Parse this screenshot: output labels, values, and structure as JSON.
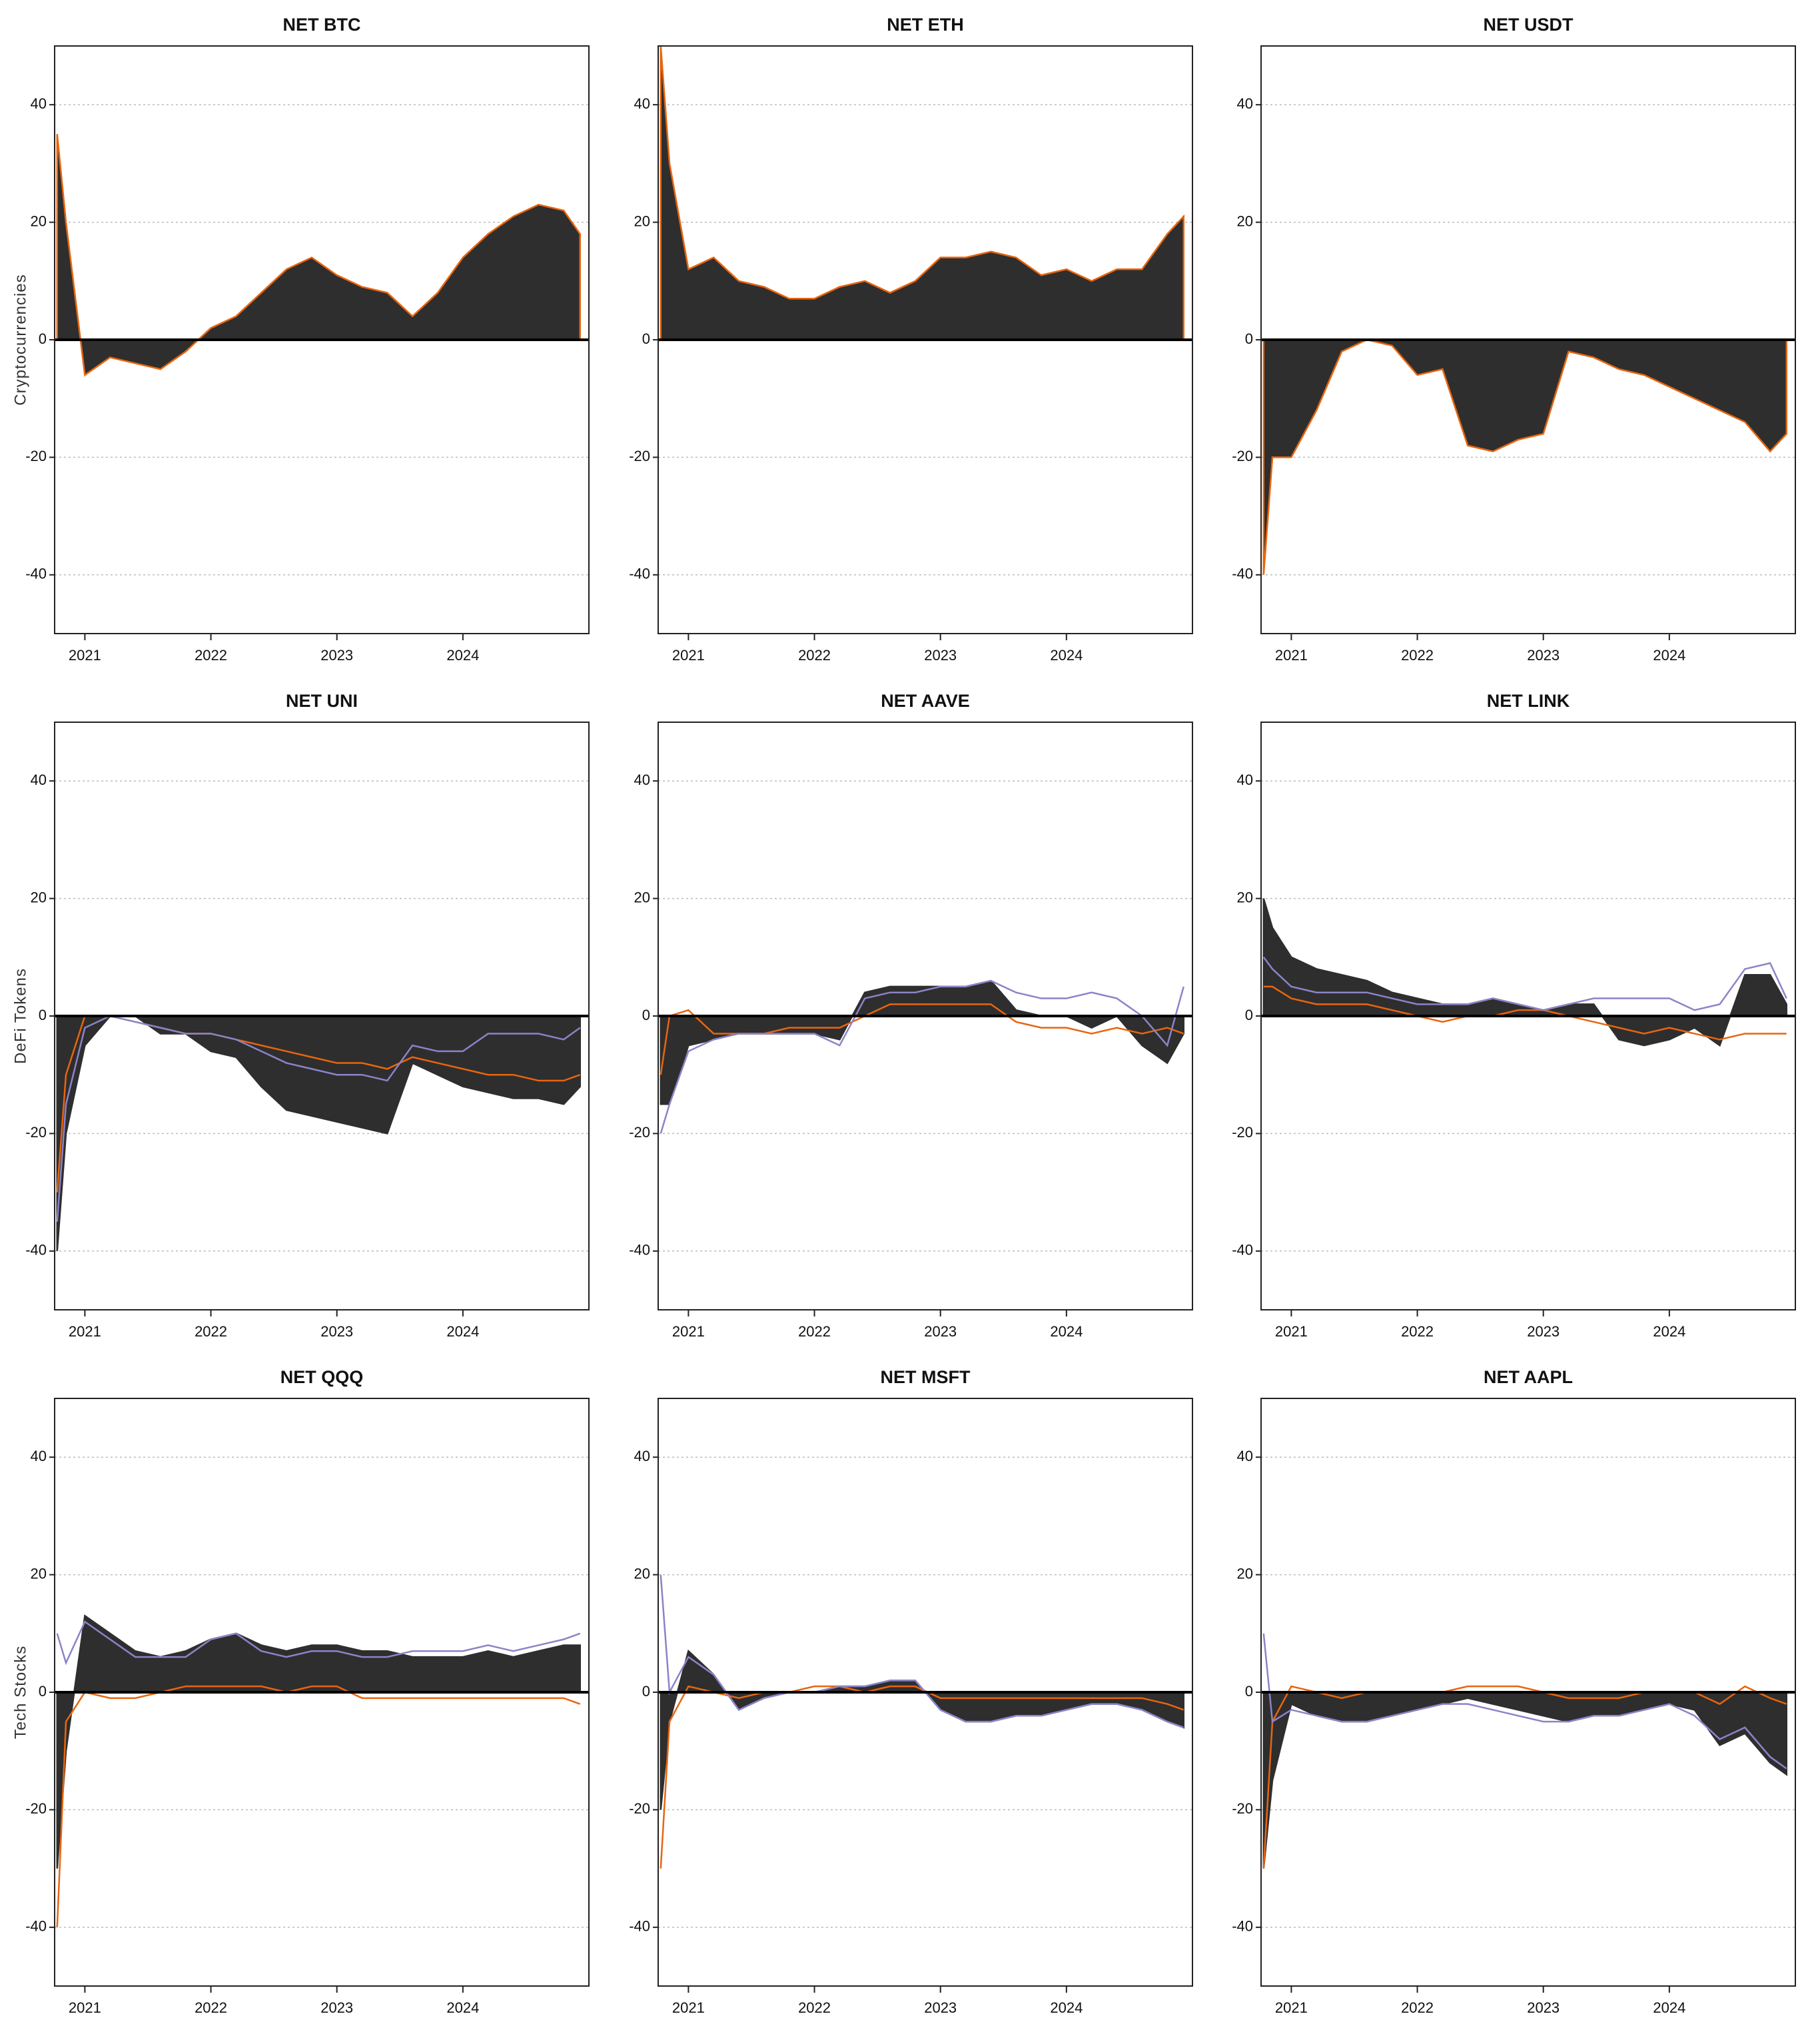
{
  "chart_data": [
    {
      "type": "area",
      "title": "NET BTC",
      "ylabel": "Cryptocurrencies",
      "x": [
        2020.78,
        2020.85,
        2021.0,
        2021.2,
        2021.4,
        2021.6,
        2021.8,
        2022.0,
        2022.2,
        2022.4,
        2022.6,
        2022.8,
        2023.0,
        2023.2,
        2023.4,
        2023.6,
        2023.8,
        2024.0,
        2024.2,
        2024.4,
        2024.6,
        2024.8,
        2024.93
      ],
      "series": [
        {
          "color": "#e8650e",
          "fill": "#2e2e2e",
          "values": [
            35,
            20,
            -6,
            -3,
            -4,
            -5,
            -2,
            2,
            4,
            8,
            12,
            14,
            11,
            9,
            8,
            4,
            8,
            14,
            18,
            21,
            23,
            22,
            18
          ]
        }
      ],
      "xlim": [
        2020.76,
        2025.0
      ],
      "xticks": [
        2021,
        2022,
        2023,
        2024
      ],
      "ylim": [
        -50,
        50
      ],
      "yticks": [
        -40,
        -20,
        0,
        20,
        40
      ],
      "grid": true
    },
    {
      "type": "area",
      "title": "NET ETH",
      "x": [
        2020.78,
        2020.85,
        2021.0,
        2021.2,
        2021.4,
        2021.6,
        2021.8,
        2022.0,
        2022.2,
        2022.4,
        2022.6,
        2022.8,
        2023.0,
        2023.2,
        2023.4,
        2023.6,
        2023.8,
        2024.0,
        2024.2,
        2024.4,
        2024.6,
        2024.8,
        2024.93
      ],
      "series": [
        {
          "color": "#e8650e",
          "fill": "#2e2e2e",
          "values": [
            50,
            30,
            12,
            14,
            10,
            9,
            7,
            7,
            9,
            10,
            8,
            10,
            14,
            14,
            15,
            14,
            11,
            12,
            10,
            12,
            12,
            18,
            21
          ]
        }
      ],
      "xlim": [
        2020.76,
        2025.0
      ],
      "xticks": [
        2021,
        2022,
        2023,
        2024
      ],
      "ylim": [
        -50,
        50
      ],
      "yticks": [
        -40,
        -20,
        0,
        20,
        40
      ],
      "grid": true
    },
    {
      "type": "area",
      "title": "NET USDT",
      "x": [
        2020.78,
        2020.85,
        2021.0,
        2021.2,
        2021.4,
        2021.6,
        2021.8,
        2022.0,
        2022.2,
        2022.4,
        2022.6,
        2022.8,
        2023.0,
        2023.2,
        2023.4,
        2023.6,
        2023.8,
        2024.0,
        2024.2,
        2024.4,
        2024.6,
        2024.8,
        2024.93
      ],
      "series": [
        {
          "color": "#e8650e",
          "fill": "#2e2e2e",
          "values": [
            -40,
            -20,
            -20,
            -12,
            -2,
            0,
            -1,
            -6,
            -5,
            -18,
            -19,
            -17,
            -16,
            -2,
            -3,
            -5,
            -6,
            -8,
            -10,
            -12,
            -14,
            -19,
            -16
          ]
        }
      ],
      "xlim": [
        2020.76,
        2025.0
      ],
      "xticks": [
        2021,
        2022,
        2023,
        2024
      ],
      "ylim": [
        -50,
        50
      ],
      "yticks": [
        -40,
        -20,
        0,
        20,
        40
      ],
      "grid": true
    },
    {
      "type": "area",
      "title": "NET UNI",
      "ylabel": "DeFi Tokens",
      "x": [
        2020.78,
        2020.85,
        2021.0,
        2021.2,
        2021.4,
        2021.6,
        2021.8,
        2022.0,
        2022.2,
        2022.4,
        2022.6,
        2022.8,
        2023.0,
        2023.2,
        2023.4,
        2023.6,
        2023.8,
        2024.0,
        2024.2,
        2024.4,
        2024.6,
        2024.8,
        2024.93
      ],
      "series": [
        {
          "color": "#2e2e2e",
          "fill": "#2e2e2e",
          "values": [
            -40,
            -20,
            -5,
            0,
            0,
            -3,
            -3,
            -6,
            -7,
            -12,
            -16,
            -17,
            -18,
            -19,
            -20,
            -8,
            -10,
            -12,
            -13,
            -14,
            -14,
            -15,
            -12
          ]
        },
        {
          "color": "#e8650e",
          "values": [
            -30,
            -10,
            0,
            0,
            -1,
            -2,
            -3,
            -3,
            -4,
            -5,
            -6,
            -7,
            -8,
            -8,
            -9,
            -7,
            -8,
            -9,
            -10,
            -10,
            -11,
            -11,
            -10
          ]
        },
        {
          "color": "#8a84c8",
          "values": [
            -35,
            -15,
            -2,
            0,
            -1,
            -2,
            -3,
            -3,
            -4,
            -6,
            -8,
            -9,
            -10,
            -10,
            -11,
            -5,
            -6,
            -6,
            -3,
            -3,
            -3,
            -4,
            -2
          ]
        }
      ],
      "xlim": [
        2020.76,
        2025.0
      ],
      "xticks": [
        2021,
        2022,
        2023,
        2024
      ],
      "ylim": [
        -50,
        50
      ],
      "yticks": [
        -40,
        -20,
        0,
        20,
        40
      ],
      "grid": true
    },
    {
      "type": "area",
      "title": "NET AAVE",
      "x": [
        2020.78,
        2020.85,
        2021.0,
        2021.2,
        2021.4,
        2021.6,
        2021.8,
        2022.0,
        2022.2,
        2022.4,
        2022.6,
        2022.8,
        2023.0,
        2023.2,
        2023.4,
        2023.6,
        2023.8,
        2024.0,
        2024.2,
        2024.4,
        2024.6,
        2024.8,
        2024.93
      ],
      "series": [
        {
          "color": "#2e2e2e",
          "fill": "#2e2e2e",
          "values": [
            -15,
            -15,
            -5,
            -4,
            -3,
            -3,
            -3,
            -3,
            -4,
            4,
            5,
            5,
            5,
            5,
            6,
            1,
            0,
            0,
            -2,
            0,
            -5,
            -8,
            -3
          ]
        },
        {
          "color": "#e8650e",
          "values": [
            -10,
            0,
            1,
            -3,
            -3,
            -3,
            -2,
            -2,
            -2,
            0,
            2,
            2,
            2,
            2,
            2,
            -1,
            -2,
            -2,
            -3,
            -2,
            -3,
            -2,
            -3
          ]
        },
        {
          "color": "#8a84c8",
          "values": [
            -20,
            -15,
            -6,
            -4,
            -3,
            -3,
            -3,
            -3,
            -5,
            3,
            4,
            4,
            5,
            5,
            6,
            4,
            3,
            3,
            4,
            3,
            0,
            -5,
            5
          ]
        }
      ],
      "xlim": [
        2020.76,
        2025.0
      ],
      "xticks": [
        2021,
        2022,
        2023,
        2024
      ],
      "ylim": [
        -50,
        50
      ],
      "yticks": [
        -40,
        -20,
        0,
        20,
        40
      ],
      "grid": true
    },
    {
      "type": "area",
      "title": "NET LINK",
      "x": [
        2020.78,
        2020.85,
        2021.0,
        2021.2,
        2021.4,
        2021.6,
        2021.8,
        2022.0,
        2022.2,
        2022.4,
        2022.6,
        2022.8,
        2023.0,
        2023.2,
        2023.4,
        2023.6,
        2023.8,
        2024.0,
        2024.2,
        2024.4,
        2024.6,
        2024.8,
        2024.93
      ],
      "series": [
        {
          "color": "#2e2e2e",
          "fill": "#2e2e2e",
          "values": [
            20,
            15,
            10,
            8,
            7,
            6,
            4,
            3,
            2,
            2,
            3,
            2,
            1,
            2,
            2,
            -4,
            -5,
            -4,
            -2,
            -5,
            7,
            7,
            2
          ]
        },
        {
          "color": "#e8650e",
          "values": [
            5,
            5,
            3,
            2,
            2,
            2,
            1,
            0,
            -1,
            0,
            0,
            1,
            1,
            0,
            -1,
            -2,
            -3,
            -2,
            -3,
            -4,
            -3,
            -3,
            -3
          ]
        },
        {
          "color": "#8a84c8",
          "values": [
            10,
            8,
            5,
            4,
            4,
            4,
            3,
            2,
            2,
            2,
            3,
            2,
            1,
            2,
            3,
            3,
            3,
            3,
            1,
            2,
            8,
            9,
            3
          ]
        }
      ],
      "xlim": [
        2020.76,
        2025.0
      ],
      "xticks": [
        2021,
        2022,
        2023,
        2024
      ],
      "ylim": [
        -50,
        50
      ],
      "yticks": [
        -40,
        -20,
        0,
        20,
        40
      ],
      "grid": true
    },
    {
      "type": "area",
      "title": "NET QQQ",
      "ylabel": "Tech Stocks",
      "x": [
        2020.78,
        2020.85,
        2021.0,
        2021.2,
        2021.4,
        2021.6,
        2021.8,
        2022.0,
        2022.2,
        2022.4,
        2022.6,
        2022.8,
        2023.0,
        2023.2,
        2023.4,
        2023.6,
        2023.8,
        2024.0,
        2024.2,
        2024.4,
        2024.6,
        2024.8,
        2024.93
      ],
      "series": [
        {
          "color": "#2e2e2e",
          "fill": "#2e2e2e",
          "values": [
            -30,
            -10,
            13,
            10,
            7,
            6,
            7,
            9,
            10,
            8,
            7,
            8,
            8,
            7,
            7,
            6,
            6,
            6,
            7,
            6,
            7,
            8,
            8
          ]
        },
        {
          "color": "#e8650e",
          "values": [
            -40,
            -5,
            0,
            -1,
            -1,
            0,
            1,
            1,
            1,
            1,
            0,
            1,
            1,
            -1,
            -1,
            -1,
            -1,
            -1,
            -1,
            -1,
            -1,
            -1,
            -2
          ]
        },
        {
          "color": "#8a84c8",
          "values": [
            10,
            5,
            12,
            9,
            6,
            6,
            6,
            9,
            10,
            7,
            6,
            7,
            7,
            6,
            6,
            7,
            7,
            7,
            8,
            7,
            8,
            9,
            10
          ]
        }
      ],
      "xlim": [
        2020.76,
        2025.0
      ],
      "xticks": [
        2021,
        2022,
        2023,
        2024
      ],
      "ylim": [
        -50,
        50
      ],
      "yticks": [
        -40,
        -20,
        0,
        20,
        40
      ],
      "grid": true
    },
    {
      "type": "area",
      "title": "NET MSFT",
      "x": [
        2020.78,
        2020.85,
        2021.0,
        2021.2,
        2021.4,
        2021.6,
        2021.8,
        2022.0,
        2022.2,
        2022.4,
        2022.6,
        2022.8,
        2023.0,
        2023.2,
        2023.4,
        2023.6,
        2023.8,
        2024.0,
        2024.2,
        2024.4,
        2024.6,
        2024.8,
        2024.93
      ],
      "series": [
        {
          "color": "#2e2e2e",
          "fill": "#2e2e2e",
          "values": [
            -20,
            -5,
            7,
            3,
            -3,
            -1,
            0,
            0,
            1,
            1,
            2,
            2,
            -3,
            -5,
            -5,
            -4,
            -4,
            -3,
            -2,
            -2,
            -3,
            -5,
            -6
          ]
        },
        {
          "color": "#e8650e",
          "values": [
            -30,
            -5,
            1,
            0,
            -1,
            0,
            0,
            1,
            1,
            0,
            1,
            1,
            -1,
            -1,
            -1,
            -1,
            -1,
            -1,
            -1,
            -1,
            -1,
            -2,
            -3
          ]
        },
        {
          "color": "#8a84c8",
          "values": [
            20,
            0,
            6,
            3,
            -3,
            -1,
            0,
            0,
            1,
            1,
            2,
            2,
            -3,
            -5,
            -5,
            -4,
            -4,
            -3,
            -2,
            -2,
            -3,
            -5,
            -6
          ]
        }
      ],
      "xlim": [
        2020.76,
        2025.0
      ],
      "xticks": [
        2021,
        2022,
        2023,
        2024
      ],
      "ylim": [
        -50,
        50
      ],
      "yticks": [
        -40,
        -20,
        0,
        20,
        40
      ],
      "grid": true
    },
    {
      "type": "area",
      "title": "NET AAPL",
      "x": [
        2020.78,
        2020.85,
        2021.0,
        2021.2,
        2021.4,
        2021.6,
        2021.8,
        2022.0,
        2022.2,
        2022.4,
        2022.6,
        2022.8,
        2023.0,
        2023.2,
        2023.4,
        2023.6,
        2023.8,
        2024.0,
        2024.2,
        2024.4,
        2024.6,
        2024.8,
        2024.93
      ],
      "series": [
        {
          "color": "#2e2e2e",
          "fill": "#2e2e2e",
          "values": [
            -30,
            -15,
            -2,
            -4,
            -5,
            -5,
            -4,
            -3,
            -2,
            -1,
            -2,
            -3,
            -4,
            -5,
            -4,
            -4,
            -3,
            -2,
            -3,
            -9,
            -7,
            -12,
            -14
          ]
        },
        {
          "color": "#e8650e",
          "values": [
            -30,
            -5,
            1,
            0,
            -1,
            0,
            0,
            0,
            0,
            1,
            1,
            1,
            0,
            -1,
            -1,
            -1,
            0,
            0,
            0,
            -2,
            1,
            -1,
            -2
          ]
        },
        {
          "color": "#8a84c8",
          "values": [
            10,
            -5,
            -3,
            -4,
            -5,
            -5,
            -4,
            -3,
            -2,
            -2,
            -3,
            -4,
            -5,
            -5,
            -4,
            -4,
            -3,
            -2,
            -4,
            -8,
            -6,
            -11,
            -13
          ]
        }
      ],
      "xlim": [
        2020.76,
        2025.0
      ],
      "xticks": [
        2021,
        2022,
        2023,
        2024
      ],
      "ylim": [
        -50,
        50
      ],
      "yticks": [
        -40,
        -20,
        0,
        20,
        40
      ],
      "grid": true
    }
  ]
}
